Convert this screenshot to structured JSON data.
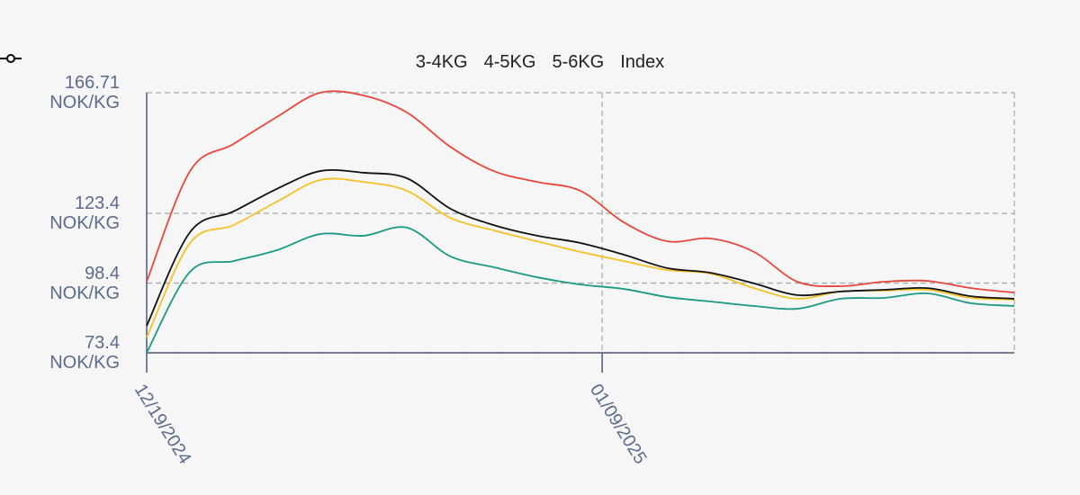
{
  "chart_data": {
    "type": "line",
    "x": [
      "12/19/2024",
      "12/21/2024",
      "12/23/2024",
      "12/25/2024",
      "12/27/2024",
      "12/29/2024",
      "12/31/2024",
      "01/02/2025",
      "01/04/2025",
      "01/06/2025",
      "01/08/2025",
      "01/10/2025",
      "01/12/2025",
      "01/14/2025",
      "01/16/2025",
      "01/18/2025",
      "01/20/2025",
      "01/22/2025",
      "01/24/2025",
      "01/26/2025",
      "01/28/2025"
    ],
    "series": [
      {
        "name": "3-4KG",
        "color": "#1a9985",
        "values": [
          73.4,
          102.5,
          106.3,
          110.2,
          116.0,
          115.4,
          118.3,
          108.0,
          104.1,
          100.5,
          97.9,
          96.3,
          93.4,
          91.8,
          90.2,
          89.2,
          92.8,
          93.1,
          94.7,
          91.2,
          90.2
        ]
      },
      {
        "name": "4-5KG",
        "color": "#f5c127",
        "values": [
          78.9,
          112.8,
          119.2,
          127.6,
          135.4,
          134.7,
          131.5,
          121.8,
          117.3,
          113.4,
          109.6,
          106.3,
          103.1,
          101.8,
          96.6,
          92.8,
          95.4,
          95.7,
          96.0,
          93.1,
          92.5
        ]
      },
      {
        "name": "5-6KG",
        "color": "#e8463c",
        "values": [
          98.9,
          138.6,
          148.3,
          158.0,
          166.7,
          165.7,
          159.6,
          147.3,
          138.6,
          134.7,
          131.5,
          120.2,
          113.4,
          114.4,
          109.6,
          98.9,
          97.3,
          98.9,
          99.2,
          96.6,
          95.0
        ]
      },
      {
        "name": "Index",
        "color": "#111111",
        "values": [
          83.1,
          116.7,
          124.1,
          132.2,
          138.6,
          138.0,
          136.0,
          125.1,
          119.2,
          115.4,
          112.8,
          108.6,
          103.8,
          102.1,
          98.3,
          94.1,
          95.4,
          96.0,
          96.6,
          93.7,
          92.8
        ]
      }
    ],
    "xlim": [
      "12/19/2024",
      "01/28/2025"
    ],
    "xticks": [
      "12/19/2024",
      "01/09/2025"
    ],
    "ylim": [
      73.4,
      166.71
    ],
    "yticks": [
      {
        "value": 73.4,
        "label": "73.4 NOK/KG"
      },
      {
        "value": 98.4,
        "label": "98.4 NOK/KG"
      },
      {
        "value": 123.4,
        "label": "123.4 NOK/KG"
      },
      {
        "value": 166.71,
        "label": "166.71 NOK/KG"
      }
    ],
    "grid": true,
    "legend": "top"
  }
}
